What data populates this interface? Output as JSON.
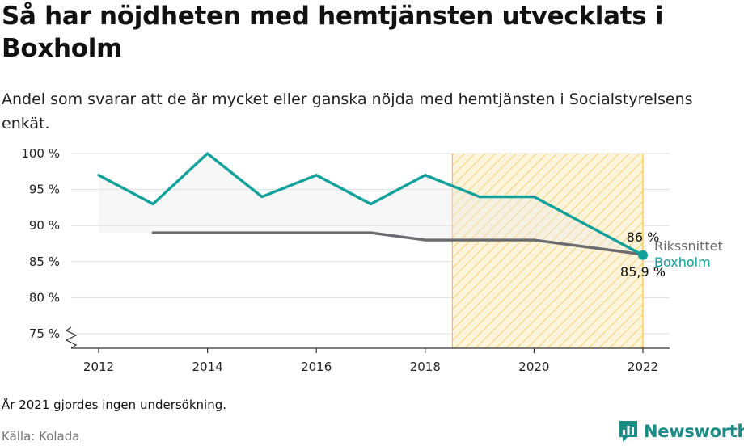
{
  "title": "Så har nöjdheten med hemtjänsten utvecklats i Boxholm",
  "subtitle": "Andel som svarar att de är mycket eller ganska nöjda med hemtjänsten i Socialstyrelsens enkät.",
  "footnote": "År 2021 gjordes ingen undersökning.",
  "source": "Källa: Kolada",
  "brand": {
    "name": "Newsworthy",
    "icon": "newsworthy-logo-icon"
  },
  "chart_data": {
    "type": "line",
    "title": "Så har nöjdheten med hemtjänsten utvecklats i Boxholm",
    "xlabel": "",
    "ylabel": "",
    "ylim": [
      73,
      100
    ],
    "xlim": [
      2011.5,
      2022.5
    ],
    "x_ticks": [
      2012,
      2014,
      2016,
      2018,
      2020,
      2022
    ],
    "y_ticks": [
      {
        "value": 75,
        "label": "75 %"
      },
      {
        "value": 80,
        "label": "80 %"
      },
      {
        "value": 85,
        "label": "85 %"
      },
      {
        "value": 90,
        "label": "90 %"
      },
      {
        "value": 95,
        "label": "95 %"
      },
      {
        "value": 100,
        "label": "100 %"
      }
    ],
    "grid": true,
    "y_axis_break": true,
    "highlight_range": {
      "from": 2018.5,
      "to": 2022,
      "color": "#f5c242"
    },
    "series": [
      {
        "name": "Rikssnittet",
        "color": "#6b6b70",
        "x": [
          2013,
          2014,
          2015,
          2016,
          2017,
          2018,
          2019,
          2020,
          2022
        ],
        "y": [
          89,
          89,
          89,
          89,
          89,
          88,
          88,
          88,
          86
        ],
        "end_label": "86 %"
      },
      {
        "name": "Boxholm",
        "color": "#11a09a",
        "x": [
          2012,
          2013,
          2014,
          2015,
          2016,
          2017,
          2018,
          2019,
          2020,
          2022
        ],
        "y": [
          97,
          93,
          100,
          94,
          97,
          93,
          97,
          94,
          94,
          85.9
        ],
        "end_label": "85,9 %"
      }
    ]
  }
}
